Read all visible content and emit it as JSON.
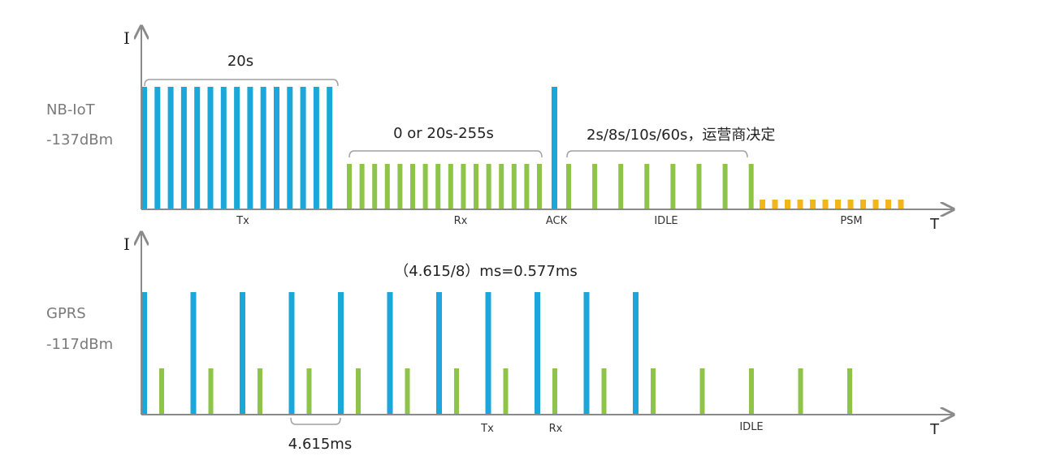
{
  "colors": {
    "tx": "#1BA7D9",
    "rx": "#8DC449",
    "psm": "#F2B51C",
    "axis": "#8A8A8A",
    "bracket": "#A0A0A0",
    "label_gray": "#7A7A7A",
    "text_dark": "#222222"
  },
  "nbiot": {
    "name": "NB-IoT",
    "sensitivity": "-137dBm",
    "y_axis_label": "I",
    "x_axis_label": "T",
    "phase_labels": {
      "tx": "Tx",
      "rx": "Rx",
      "ack": "ACK",
      "idle": "IDLE",
      "psm": "PSM"
    },
    "annotations": {
      "tx_duration": "20s",
      "rx_duration": "0 or 20s-255s",
      "idle_duration": "2s/8s/10s/60s，运营商决定"
    },
    "pulse_counts": {
      "tx": 15,
      "rx": 16,
      "ack": 1,
      "idle": 8,
      "psm": 12
    }
  },
  "gprs": {
    "name": "GPRS",
    "sensitivity": "-117dBm",
    "y_axis_label": "I",
    "x_axis_label": "T",
    "phase_labels": {
      "tx": "Tx",
      "rx": "Rx",
      "idle": "IDLE"
    },
    "annotations": {
      "timeslot_formula": "（4.615/8）ms=0.577ms",
      "frame_period": "4.615ms"
    },
    "pulse_counts": {
      "tx": 11,
      "rx": 15
    }
  }
}
